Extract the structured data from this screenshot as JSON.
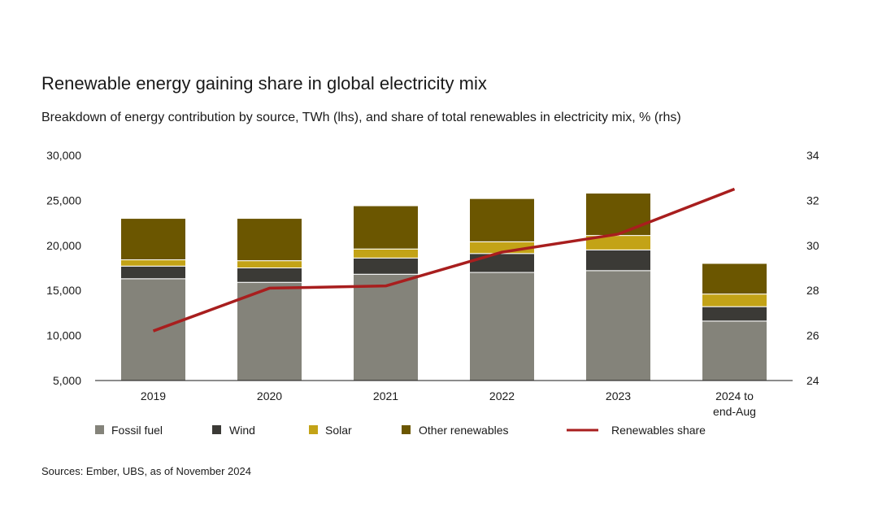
{
  "chart_data": {
    "type": "bar",
    "stacked": true,
    "title": "Renewable energy gaining share in global electricity mix",
    "subtitle": "Breakdown of energy contribution by source, TWh (lhs), and share of total renewables in electricity mix, % (rhs)",
    "source": "Sources: Ember, UBS, as of November 2024",
    "categories": [
      "2019",
      "2020",
      "2021",
      "2022",
      "2023",
      "2024 to end-Aug"
    ],
    "category_lines": [
      [
        "2019"
      ],
      [
        "2020"
      ],
      [
        "2021"
      ],
      [
        "2022"
      ],
      [
        "2023"
      ],
      [
        "2024 to",
        "end-Aug"
      ]
    ],
    "y_left": {
      "ylim": [
        5000,
        30000
      ],
      "ticks": [
        5000,
        10000,
        15000,
        20000,
        25000,
        30000
      ],
      "tick_labels": [
        "5,000",
        "10,000",
        "15,000",
        "20,000",
        "25,000",
        "30,000"
      ]
    },
    "y_right": {
      "ylim": [
        24,
        34
      ],
      "ticks": [
        24,
        26,
        28,
        30,
        32,
        34
      ],
      "tick_labels": [
        "24",
        "26",
        "28",
        "30",
        "32",
        "34"
      ]
    },
    "series": [
      {
        "name": "Fossil fuel",
        "color": "#84837a",
        "values": [
          16300,
          15900,
          16800,
          17000,
          17200,
          11600
        ]
      },
      {
        "name": "Wind",
        "color": "#3b3a36",
        "values": [
          1400,
          1600,
          1800,
          2100,
          2300,
          1600
        ]
      },
      {
        "name": "Solar",
        "color": "#c3a317",
        "values": [
          700,
          800,
          1000,
          1300,
          1600,
          1400
        ]
      },
      {
        "name": "Other renewables",
        "color": "#6b5600",
        "values": [
          4600,
          4700,
          4800,
          4800,
          4700,
          3400
        ]
      }
    ],
    "line_series": {
      "name": "Renewables share",
      "color": "#a81e1e",
      "axis": "right",
      "values": [
        26.2,
        28.1,
        28.2,
        29.7,
        30.5,
        32.5
      ]
    },
    "legend_placement": "bottom",
    "grid": false
  }
}
